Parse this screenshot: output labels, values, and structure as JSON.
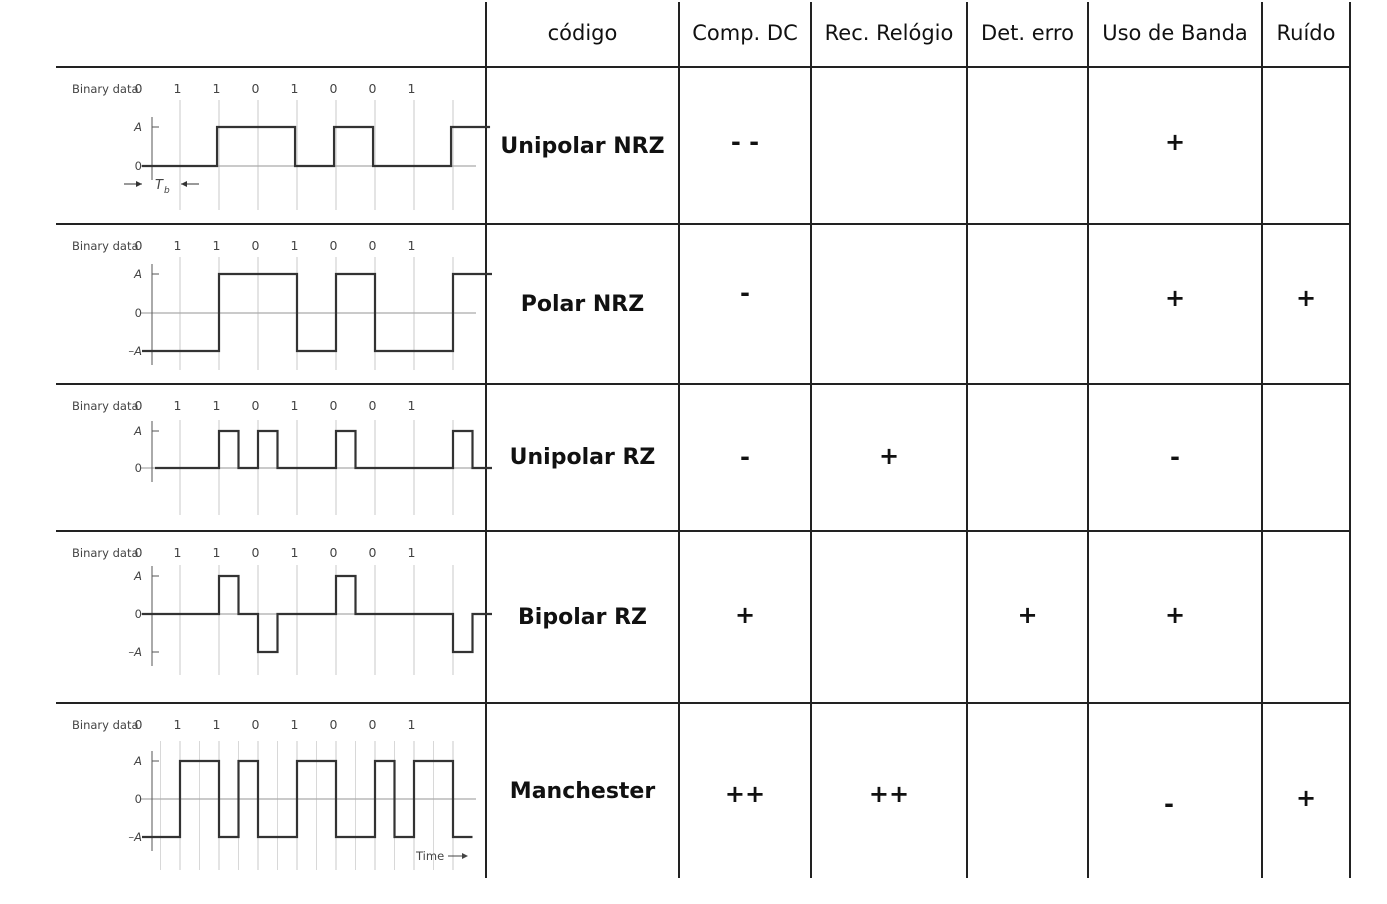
{
  "headers": [
    "código",
    "Comp. DC",
    "Rec. Relógio",
    "Det. erro",
    "Uso de Banda",
    "Ruído"
  ],
  "waveform_labels": {
    "binary_data": "Binary data",
    "bits": [
      "0",
      "1",
      "1",
      "0",
      "1",
      "0",
      "0",
      "1"
    ],
    "level_high": "A",
    "level_zero": "0",
    "level_low": "–A",
    "bit_period": "T",
    "bit_period_sub": "b",
    "time_axis": "Time"
  },
  "rows": [
    {
      "code": "Unipolar NRZ",
      "waveform": "unipolar-nrz",
      "levels": [
        "A",
        "0"
      ],
      "marks": {
        "comp_dc": "- -",
        "rec_relogio": "",
        "det_erro": "",
        "uso_banda": "+",
        "ruido": ""
      }
    },
    {
      "code": "Polar NRZ",
      "waveform": "polar-nrz",
      "levels": [
        "A",
        "0",
        "–A"
      ],
      "marks": {
        "comp_dc": "-",
        "rec_relogio": "",
        "det_erro": "",
        "uso_banda": "+",
        "ruido": "+"
      }
    },
    {
      "code": "Unipolar RZ",
      "waveform": "unipolar-rz",
      "levels": [
        "A",
        "0"
      ],
      "marks": {
        "comp_dc": "-",
        "rec_relogio": "+",
        "det_erro": "",
        "uso_banda": "-",
        "ruido": ""
      }
    },
    {
      "code": "Bipolar RZ",
      "waveform": "bipolar-rz",
      "levels": [
        "A",
        "0",
        "–A"
      ],
      "marks": {
        "comp_dc": "+",
        "rec_relogio": "",
        "det_erro": "+",
        "uso_banda": "+",
        "ruido": ""
      }
    },
    {
      "code": "Manchester",
      "waveform": "manchester",
      "levels": [
        "A",
        "0",
        "–A"
      ],
      "marks": {
        "comp_dc": "++",
        "rec_relogio": "++",
        "det_erro": "",
        "uso_banda": "-",
        "ruido": "+"
      }
    }
  ]
}
